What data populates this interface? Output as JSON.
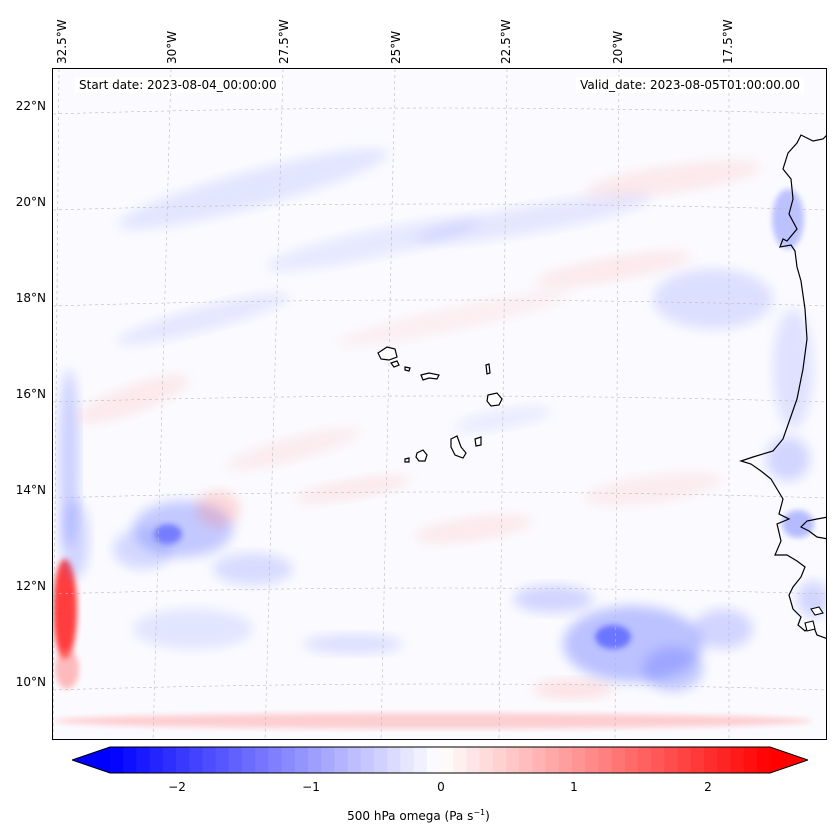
{
  "header": {
    "start_date": "Start date: 2023-08-04_00:00:00",
    "valid_date": "Valid_date: 2023-08-05T01:00:00.00"
  },
  "axes": {
    "lon_labels": [
      "32.5°W",
      "30°W",
      "27.5°W",
      "25°W",
      "22.5°W",
      "20°W",
      "17.5°W"
    ],
    "lat_labels": [
      "22°N",
      "20°N",
      "18°N",
      "16°N",
      "14°N",
      "12°N",
      "10°N"
    ]
  },
  "colorbar": {
    "ticks": [
      "−2",
      "−1",
      "0",
      "1",
      "2"
    ],
    "label": "500 hPa omega (Pa s",
    "label_exp": "−1",
    "label_close": ")",
    "cmap": "bwr",
    "range": [
      -2.5,
      2.5
    ]
  },
  "colors": {
    "negative": "#0000ff",
    "positive": "#ff0000",
    "coast": "#000000",
    "grid": "#bbbbbb"
  }
}
